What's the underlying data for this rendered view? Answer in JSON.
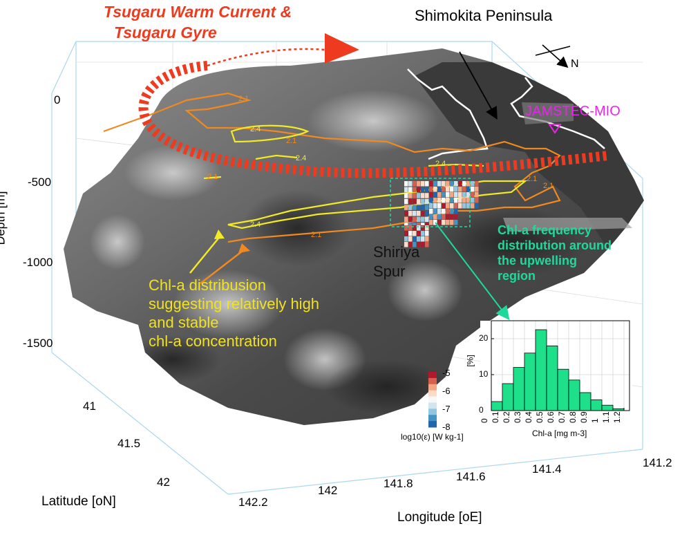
{
  "annotations": {
    "current_title_line1": "Tsugaru Warm Current &",
    "current_title_line2": "Tsugaru Gyre",
    "peninsula": "Shimokita Peninsula",
    "north": "N",
    "station": "JAMSTEC-MIO",
    "spur_line1": "Shiriya",
    "spur_line2": "Spur",
    "chl_desc_line1": "Chl-a distribusion",
    "chl_desc_line2": "suggesting relatively high",
    "chl_desc_line3": "and stable",
    "chl_desc_line4": "chl-a concentration",
    "hist_desc_line1": "Chl-a frequency",
    "hist_desc_line2": "distribution around",
    "hist_desc_line3": "the upwelling",
    "hist_desc_line4": "region"
  },
  "axes": {
    "depth_label": "Depth [m]",
    "depth_ticks": [
      "0",
      "-500",
      "-1000",
      "-1500"
    ],
    "latitude_label": "Latitude [oN]",
    "latitude_ticks": [
      "41",
      "41.5",
      "42"
    ],
    "longitude_label": "Longitude [oE]",
    "longitude_ticks": [
      "142.2",
      "142",
      "141.8",
      "141.6",
      "141.4",
      "141.2"
    ]
  },
  "contour_labels": [
    "2.1",
    "2.4",
    "2.1",
    "2.4",
    "2.1",
    "2.4",
    "2.1",
    "2.4",
    "2.1",
    "2.1"
  ],
  "colorbar": {
    "label": "log10(ε) [W kg-1]",
    "ticks": [
      "-5",
      "-6",
      "-7",
      "-8"
    ],
    "colors": [
      "#b2182b",
      "#d6604d",
      "#f4a582",
      "#fddbc7",
      "#f7f7f7",
      "#d1e5f0",
      "#92c5de",
      "#4393c3",
      "#2166ac"
    ]
  },
  "chart_data": {
    "type": "bar",
    "xlabel": "Chl-a [mg m-3]",
    "ylabel": "[%]",
    "x_ticks": [
      "0",
      "0.1",
      "0.2",
      "0.3",
      "0.4",
      "0.5",
      "0.6",
      "0.7",
      "0.8",
      "0.9",
      "1",
      "1.1",
      "1.2"
    ],
    "y_ticks": [
      "0",
      "10",
      "20"
    ],
    "ylim": [
      0,
      25
    ],
    "xlim": [
      0,
      1.25
    ],
    "bin_width": 0.1,
    "bin_starts": [
      0,
      0.1,
      0.2,
      0.3,
      0.4,
      0.5,
      0.6,
      0.7,
      0.8,
      0.9,
      1.0,
      1.1
    ],
    "values": [
      2.5,
      7.5,
      12,
      16,
      22.5,
      18,
      11.5,
      8.5,
      5,
      3,
      1.5,
      0.5
    ],
    "bar_color": "#1ee08a",
    "grid": true
  }
}
